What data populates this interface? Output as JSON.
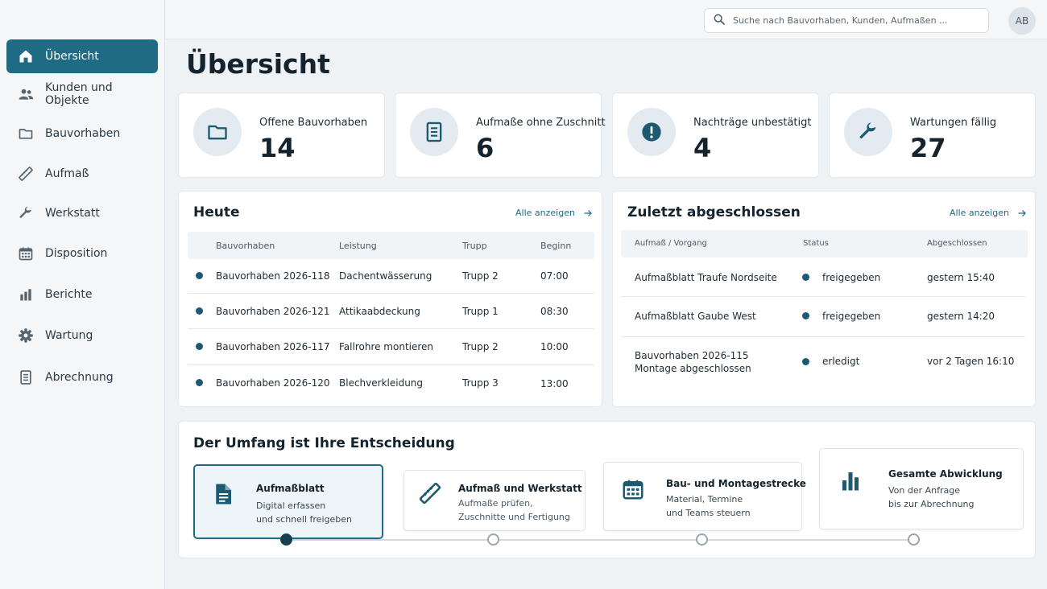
{
  "search": {
    "placeholder": "Suche nach Bauvorhaben, Kunden, Aufmaßen ..."
  },
  "user": {
    "initials": "AB"
  },
  "colors": {
    "accent": "#1f6b84",
    "dot": "#1c5a72",
    "background": "#eef2f5"
  },
  "sidebar": {
    "items": [
      {
        "label": "Übersicht",
        "icon": "home-icon",
        "active": true
      },
      {
        "label": "Kunden und Objekte",
        "icon": "users-icon"
      },
      {
        "label": "Bauvorhaben",
        "icon": "folder-icon"
      },
      {
        "label": "Aufmaß",
        "icon": "ruler-icon"
      },
      {
        "label": "Werkstatt",
        "icon": "wrench-icon"
      },
      {
        "label": "Disposition",
        "icon": "calendar-icon"
      },
      {
        "label": "Berichte",
        "icon": "bar-chart-icon"
      },
      {
        "label": "Wartung",
        "icon": "gear-icon"
      },
      {
        "label": "Abrechnung",
        "icon": "document-icon"
      }
    ]
  },
  "page": {
    "title": "Übersicht"
  },
  "stats": [
    {
      "label": "Offene Bauvorhaben",
      "value": "14",
      "icon": "folder-icon"
    },
    {
      "label": "Aufmaße ohne Zuschnitt",
      "value": "6",
      "icon": "document-icon"
    },
    {
      "label": "Nachträge unbestätigt",
      "value": "4",
      "icon": "alert-icon"
    },
    {
      "label": "Wartungen fällig",
      "value": "27",
      "icon": "wrench-icon"
    }
  ],
  "today": {
    "title": "Heute",
    "link": "Alle anzeigen",
    "columns": [
      "Bauvorhaben",
      "Leistung",
      "Trupp",
      "Beginn"
    ],
    "rows": [
      {
        "project": "Bauvorhaben 2026-118",
        "service": "Dachentwässerung",
        "team": "Trupp 2",
        "start": "07:00"
      },
      {
        "project": "Bauvorhaben 2026-121",
        "service": "Attikaabdeckung",
        "team": "Trupp 1",
        "start": "08:30"
      },
      {
        "project": "Bauvorhaben 2026-117",
        "service": "Fallrohre montieren",
        "team": "Trupp 2",
        "start": "10:00"
      },
      {
        "project": "Bauvorhaben 2026-120",
        "service": "Blechverkleidung",
        "team": "Trupp 3",
        "start": "13:00"
      }
    ]
  },
  "recent": {
    "title": "Zuletzt abgeschlossen",
    "link": "Alle anzeigen",
    "columns": [
      "Aufmaß / Vorgang",
      "Status",
      "Abgeschlossen"
    ],
    "rows": [
      {
        "item": "Aufmaßblatt Traufe Nordseite",
        "item2": "",
        "status": "freigegeben",
        "date": "gestern 15:40"
      },
      {
        "item": "Aufmaßblatt Gaube West",
        "item2": "",
        "status": "freigegeben",
        "date": "gestern 14:20"
      },
      {
        "item": "Bauvorhaben 2026-115",
        "item2": "Montage abgeschlossen",
        "status": "erledigt",
        "date": "vor 2 Tagen 16:10"
      }
    ]
  },
  "scope": {
    "title": "Der Umfang ist Ihre Entscheidung",
    "options": [
      {
        "title": "Aufmaßblatt",
        "line1": "Digital erfassen",
        "line2": "und schnell freigeben",
        "icon": "document-icon",
        "active": true
      },
      {
        "title": "Aufmaß und Werkstatt",
        "line1": "Aufmaße prüfen,",
        "line2": "Zuschnitte und Fertigung",
        "icon": "ruler-icon"
      },
      {
        "title": "Bau- und Montagestrecke",
        "line1": "Material, Termine",
        "line2": "und Teams steuern",
        "icon": "calendar-icon"
      },
      {
        "title": "Gesamte Abwicklung",
        "line1": "Von der Anfrage",
        "line2": "bis zur Abrechnung",
        "icon": "bar-chart-icon"
      }
    ]
  }
}
